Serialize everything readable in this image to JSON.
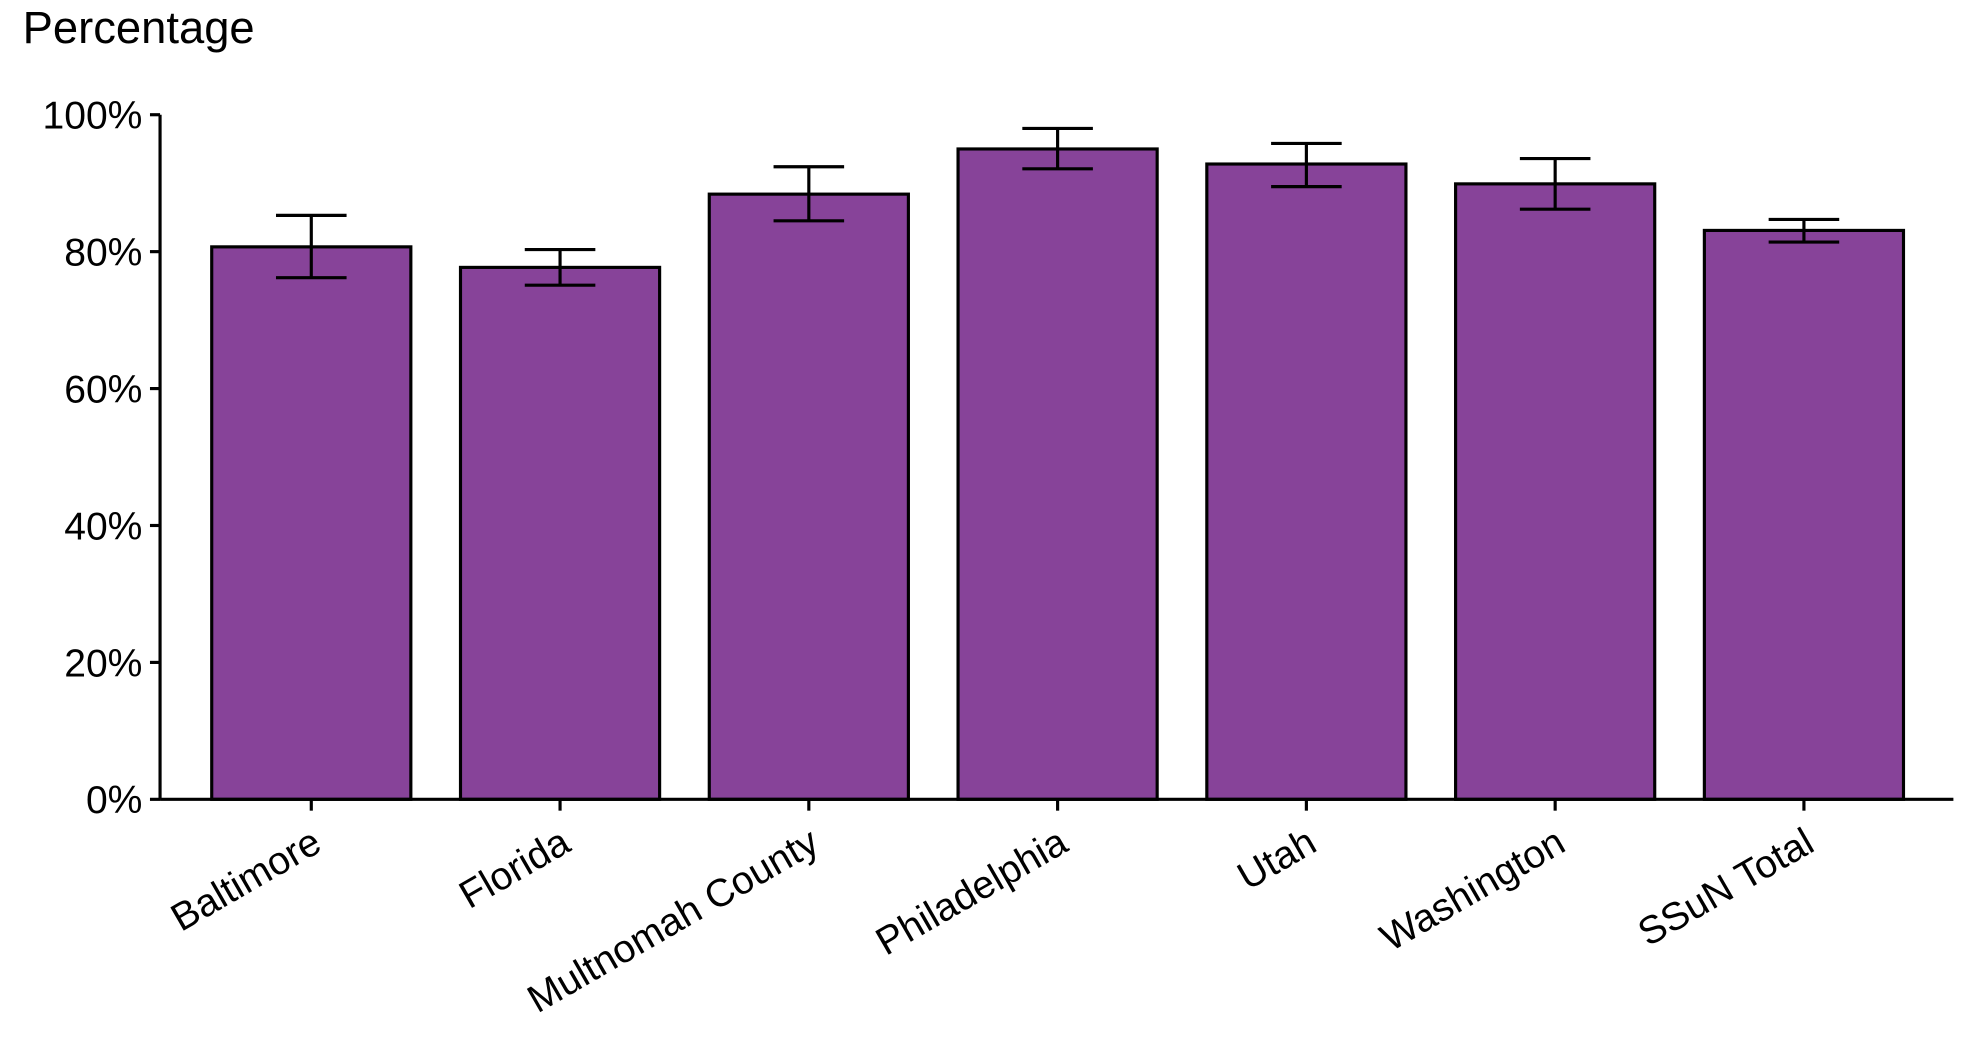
{
  "chart_data": {
    "type": "bar",
    "title": "",
    "ylabel": "Percentage",
    "xlabel": "",
    "ylim": [
      0,
      100
    ],
    "yticks": [
      "0%",
      "20%",
      "40%",
      "60%",
      "80%",
      "100%"
    ],
    "ytick_values": [
      0,
      20,
      40,
      60,
      80,
      100
    ],
    "grid": false,
    "bar_color": "#874399",
    "categories": [
      "Baltimore",
      "Florida",
      "Multnomah County",
      "Philadelphia",
      "Utah",
      "Washington",
      "SSuN Total"
    ],
    "values": [
      80.7,
      77.7,
      88.4,
      95.0,
      92.8,
      89.9,
      83.1
    ],
    "error_low": [
      76.2,
      75.1,
      84.5,
      92.1,
      89.5,
      86.2,
      81.4
    ],
    "error_high": [
      85.3,
      80.3,
      92.4,
      98.0,
      95.8,
      93.6,
      84.7
    ]
  }
}
